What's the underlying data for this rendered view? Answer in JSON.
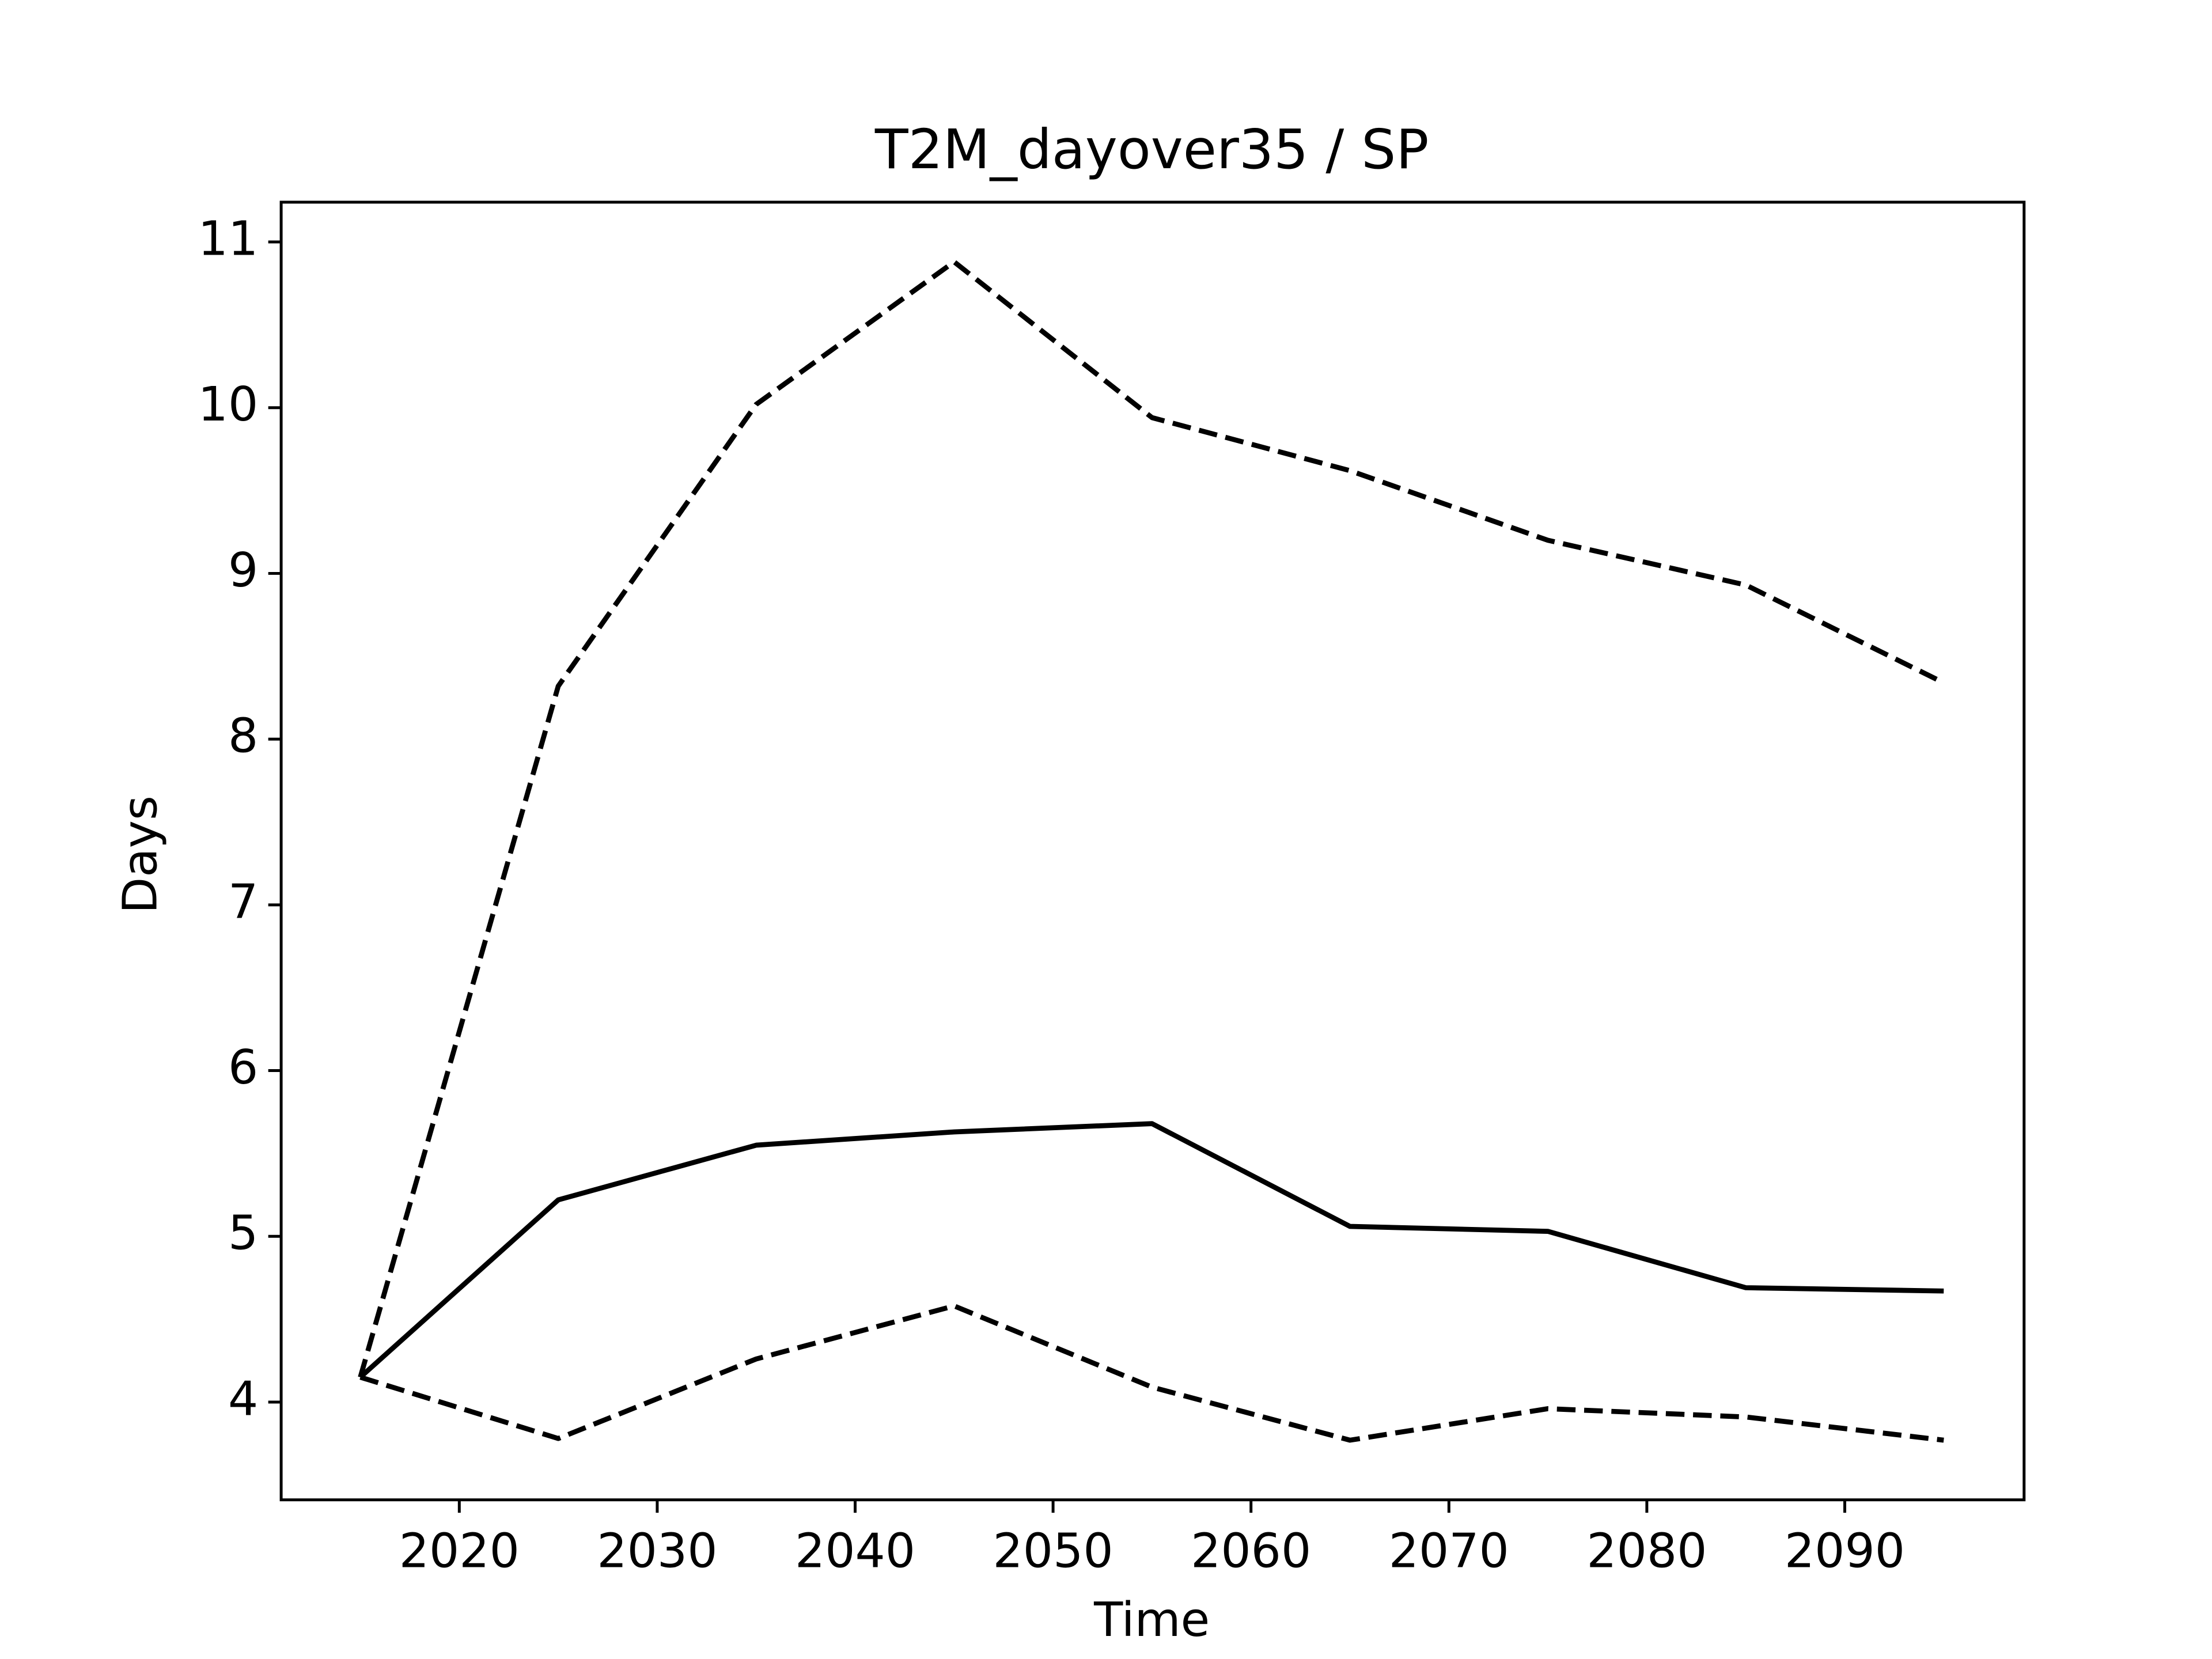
{
  "chart_data": {
    "type": "line",
    "title": "T2M_dayover35 / SP",
    "xlabel": "Time",
    "ylabel": "Days",
    "x": [
      2015,
      2025,
      2035,
      2045,
      2055,
      2065,
      2075,
      2085,
      2095
    ],
    "series": [
      {
        "color": "#000000",
        "linestyle": "solid",
        "values": [
          4.15,
          5.22,
          5.55,
          5.63,
          5.68,
          5.06,
          5.03,
          4.69,
          4.67
        ]
      },
      {
        "color": "#000000",
        "linestyle": "dashed",
        "values": [
          4.15,
          8.32,
          10.02,
          10.88,
          9.94,
          9.62,
          9.2,
          8.93,
          8.34
        ]
      },
      {
        "color": "#000000",
        "linestyle": "dashed",
        "values": [
          4.15,
          3.78,
          4.26,
          4.58,
          4.09,
          3.77,
          3.96,
          3.91,
          3.77
        ]
      }
    ],
    "xlim": [
      2011,
      2099.06
    ],
    "ylim": [
      3.41,
      11.24
    ],
    "xticks": [
      2020,
      2030,
      2040,
      2050,
      2060,
      2070,
      2080,
      2090
    ],
    "yticks": [
      4,
      5,
      6,
      7,
      8,
      9,
      10,
      11
    ],
    "grid": false
  }
}
